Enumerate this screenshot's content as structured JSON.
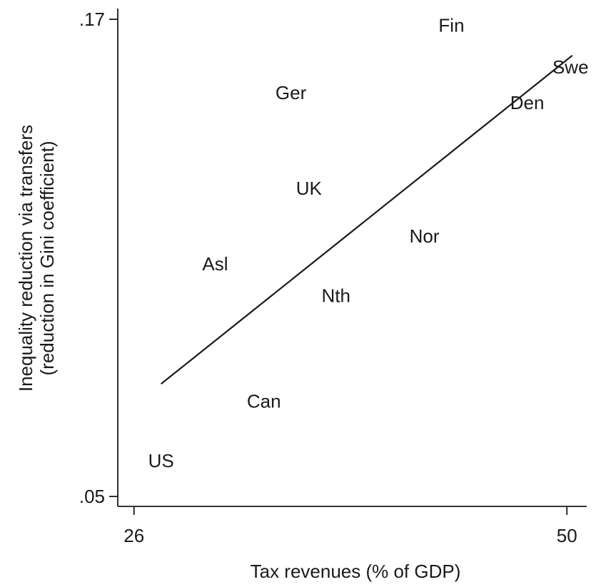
{
  "chart_data": {
    "type": "scatter",
    "xlabel": "Tax revenues (% of GDP)",
    "ylabel_line1": "Inequality reduction via transfers",
    "ylabel_line2": "(reduction in Gini coefficient)",
    "xlim": [
      25.1,
      51.1
    ],
    "ylim": [
      0.0475,
      0.1727
    ],
    "x_ticks": [
      {
        "value": 26,
        "label": "26"
      },
      {
        "value": 50,
        "label": "50"
      }
    ],
    "y_ticks": [
      {
        "value": 0.05,
        "label": ".05"
      },
      {
        "value": 0.17,
        "label": ".17"
      }
    ],
    "grid": false,
    "points": [
      {
        "label": "US",
        "x": 27.5,
        "y": 0.059
      },
      {
        "label": "Can",
        "x": 33.2,
        "y": 0.074
      },
      {
        "label": "Asl",
        "x": 30.5,
        "y": 0.1085
      },
      {
        "label": "Nth",
        "x": 37.2,
        "y": 0.1005
      },
      {
        "label": "UK",
        "x": 35.7,
        "y": 0.1275
      },
      {
        "label": "Nor",
        "x": 42.1,
        "y": 0.1155
      },
      {
        "label": "Ger",
        "x": 34.7,
        "y": 0.1515
      },
      {
        "label": "Fin",
        "x": 43.6,
        "y": 0.1685
      },
      {
        "label": "Den",
        "x": 47.8,
        "y": 0.149
      },
      {
        "label": "Swe",
        "x": 50.2,
        "y": 0.158
      }
    ],
    "fit_line": {
      "x": [
        27.5,
        50.3
      ],
      "y": [
        0.0783,
        0.1609
      ]
    }
  }
}
